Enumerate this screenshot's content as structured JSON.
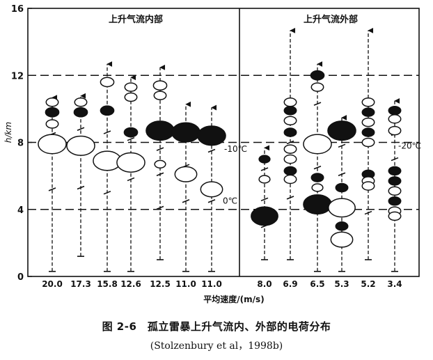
{
  "chart_data": {
    "type": "scatter",
    "description_type": "charge-distribution column chart",
    "ylabel": "h/km",
    "xlabel": "平均速度/(m/s)",
    "ylim": [
      0,
      16
    ],
    "yticks": [
      "0",
      "4",
      "8",
      "12",
      "16"
    ],
    "reference_lines_km": [
      4,
      8,
      12
    ],
    "panels": [
      {
        "title": "上升气流内部",
        "note": "-10℃ / 0℃"
      },
      {
        "title": "上升气流外部",
        "note": "-20℃"
      }
    ],
    "temperature_labels": [
      {
        "text": "-10℃",
        "h_km": 7.6
      },
      {
        "text": "0℃",
        "h_km": 4.5
      },
      {
        "text": "-20℃",
        "h_km": 7.8
      }
    ],
    "legend_note": "filled ellipse = negative charge region; open ellipse = positive charge region",
    "columns": [
      {
        "speed": "20.0",
        "panel": 0,
        "bottom": 0.3,
        "top": 10.8,
        "dashes": [
          8.5,
          5.2
        ],
        "charges": [
          {
            "h": 10.4,
            "type": "positive",
            "size": 0.5
          },
          {
            "h": 9.8,
            "type": "negative",
            "size": 0.55
          },
          {
            "h": 9.1,
            "type": "positive",
            "size": 0.5
          },
          {
            "h": 7.9,
            "type": "positive",
            "size": 1.15
          }
        ]
      },
      {
        "speed": "17.3",
        "panel": 0,
        "bottom": 1.2,
        "top": 10.9,
        "dashes": [
          8.8,
          5.3
        ],
        "charges": [
          {
            "h": 10.4,
            "type": "positive",
            "size": 0.5
          },
          {
            "h": 9.8,
            "type": "negative",
            "size": 0.55
          },
          {
            "h": 7.8,
            "type": "positive",
            "size": 1.15
          }
        ]
      },
      {
        "speed": "15.8",
        "panel": 0,
        "bottom": 0.3,
        "top": 12.8,
        "dashes": [
          8.6,
          5.0
        ],
        "charges": [
          {
            "h": 11.6,
            "type": "positive",
            "size": 0.55
          },
          {
            "h": 9.9,
            "type": "negative",
            "size": 0.55
          },
          {
            "h": 6.9,
            "type": "positive",
            "size": 1.15
          }
        ]
      },
      {
        "speed": "12.6",
        "panel": 0,
        "bottom": 0.3,
        "top": 12.0,
        "dashes": [
          8.2,
          5.8
        ],
        "charges": [
          {
            "h": 11.3,
            "type": "positive",
            "size": 0.5
          },
          {
            "h": 10.7,
            "type": "positive",
            "size": 0.5
          },
          {
            "h": 8.6,
            "type": "negative",
            "size": 0.55
          },
          {
            "h": 6.8,
            "type": "positive",
            "size": 1.15
          }
        ]
      },
      {
        "speed": "12.5",
        "panel": 0,
        "bottom": 1.0,
        "top": 12.6,
        "dashes": [
          7.6,
          6.1,
          4.1
        ],
        "charges": [
          {
            "h": 11.4,
            "type": "positive",
            "size": 0.55
          },
          {
            "h": 10.8,
            "type": "positive",
            "size": 0.5
          },
          {
            "h": 8.7,
            "type": "negative",
            "size": 1.15
          },
          {
            "h": 6.7,
            "type": "positive",
            "size": 0.45
          }
        ]
      },
      {
        "speed": "11.0",
        "panel": 0,
        "bottom": 0.3,
        "top": 10.4,
        "dashes": [
          6.6,
          4.5
        ],
        "charges": [
          {
            "h": 8.6,
            "type": "negative",
            "size": 1.15
          },
          {
            "h": 6.1,
            "type": "positive",
            "size": 0.9
          }
        ]
      },
      {
        "speed": "11.0",
        "panel": 0,
        "bottom": 0.3,
        "top": 10.2,
        "dashes": [
          7.5,
          4.5
        ],
        "charges": [
          {
            "h": 8.4,
            "type": "negative",
            "size": 1.15
          },
          {
            "h": 5.2,
            "type": "positive",
            "size": 0.9
          }
        ]
      },
      {
        "speed": "8.0",
        "panel": 1,
        "bottom": 1.0,
        "top": 7.8,
        "dashes": [
          6.4,
          4.6,
          3.0
        ],
        "charges": [
          {
            "h": 7.0,
            "type": "negative",
            "size": 0.45
          },
          {
            "h": 5.8,
            "type": "positive",
            "size": 0.45
          },
          {
            "h": 3.6,
            "type": "negative",
            "size": 1.1
          }
        ]
      },
      {
        "speed": "6.9",
        "panel": 1,
        "bottom": 1.0,
        "top": 14.8,
        "dashes": [
          8.0,
          4.7
        ],
        "charges": [
          {
            "h": 10.4,
            "type": "positive",
            "size": 0.5
          },
          {
            "h": 9.9,
            "type": "negative",
            "size": 0.5
          },
          {
            "h": 9.3,
            "type": "positive",
            "size": 0.5
          },
          {
            "h": 8.6,
            "type": "negative",
            "size": 0.5
          },
          {
            "h": 7.6,
            "type": "positive",
            "size": 0.5
          },
          {
            "h": 7.0,
            "type": "positive",
            "size": 0.5
          },
          {
            "h": 6.3,
            "type": "negative",
            "size": 0.5
          },
          {
            "h": 5.8,
            "type": "positive",
            "size": 0.5
          }
        ]
      },
      {
        "speed": "6.5",
        "panel": 1,
        "bottom": 0.3,
        "top": 12.8,
        "dashes": [
          10.3,
          6.5
        ],
        "charges": [
          {
            "h": 12.0,
            "type": "negative",
            "size": 0.55
          },
          {
            "h": 11.3,
            "type": "positive",
            "size": 0.5
          },
          {
            "h": 7.9,
            "type": "positive",
            "size": 1.15
          },
          {
            "h": 5.9,
            "type": "negative",
            "size": 0.5
          },
          {
            "h": 5.3,
            "type": "positive",
            "size": 0.45
          },
          {
            "h": 4.3,
            "type": "negative",
            "size": 1.15
          }
        ]
      },
      {
        "speed": "5.3",
        "panel": 1,
        "bottom": 0.3,
        "top": 9.6,
        "dashes": [
          7.8,
          6.1
        ],
        "charges": [
          {
            "h": 8.7,
            "type": "negative",
            "size": 1.15
          },
          {
            "h": 5.3,
            "type": "negative",
            "size": 0.5
          },
          {
            "h": 4.1,
            "type": "positive",
            "size": 1.1
          },
          {
            "h": 3.0,
            "type": "negative",
            "size": 0.5
          },
          {
            "h": 2.2,
            "type": "positive",
            "size": 0.9
          }
        ]
      },
      {
        "speed": "5.2",
        "panel": 1,
        "bottom": 1.0,
        "top": 14.8,
        "dashes": [
          7.9,
          3.8
        ],
        "charges": [
          {
            "h": 10.4,
            "type": "positive",
            "size": 0.5
          },
          {
            "h": 9.8,
            "type": "negative",
            "size": 0.5
          },
          {
            "h": 9.2,
            "type": "positive",
            "size": 0.5
          },
          {
            "h": 8.6,
            "type": "negative",
            "size": 0.5
          },
          {
            "h": 8.0,
            "type": "positive",
            "size": 0.5
          },
          {
            "h": 6.1,
            "type": "negative",
            "size": 0.5
          },
          {
            "h": 5.7,
            "type": "positive",
            "size": 0.5
          },
          {
            "h": 5.4,
            "type": "positive",
            "size": 0.5
          }
        ]
      },
      {
        "speed": "3.4",
        "panel": 1,
        "bottom": 0.3,
        "top": 10.6,
        "dashes": [
          8.5,
          7.0
        ],
        "charges": [
          {
            "h": 9.9,
            "type": "negative",
            "size": 0.5
          },
          {
            "h": 9.4,
            "type": "positive",
            "size": 0.5
          },
          {
            "h": 8.7,
            "type": "positive",
            "size": 0.5
          },
          {
            "h": 6.3,
            "type": "negative",
            "size": 0.5
          },
          {
            "h": 5.7,
            "type": "negative",
            "size": 0.5
          },
          {
            "h": 5.1,
            "type": "positive",
            "size": 0.5
          },
          {
            "h": 4.5,
            "type": "negative",
            "size": 0.5
          },
          {
            "h": 3.9,
            "type": "positive",
            "size": 0.5
          },
          {
            "h": 3.6,
            "type": "positive",
            "size": 0.5
          }
        ]
      }
    ]
  },
  "caption": {
    "line1": "图 2-6　孤立雷暴上升气流内、外部的电荷分布",
    "line2": "(Stolzenbury et al，1998b)"
  }
}
